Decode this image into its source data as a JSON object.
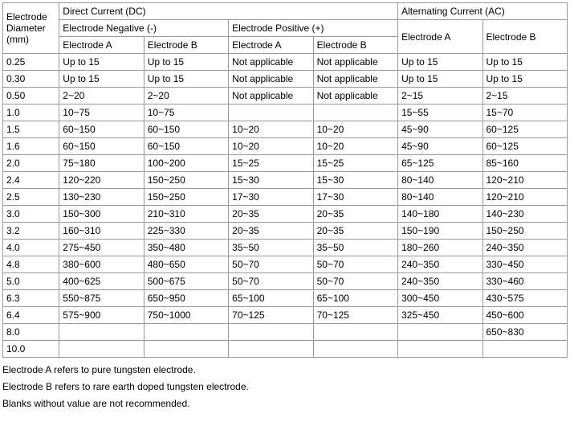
{
  "headers": {
    "diameter": "Electrode Diameter (mm)",
    "dc": "Direct Current (DC)",
    "ac": "Alternating Current (AC)",
    "neg": "Electrode Negative (-)",
    "pos": "Electrode Positive (+)",
    "ea": "Electrode A",
    "eb": "Electrode B"
  },
  "rows": [
    {
      "d": "0.25",
      "c": [
        "Up to 15",
        "Up to 15",
        "Not applicable",
        "Not applicable",
        "Up to 15",
        "Up to 15"
      ]
    },
    {
      "d": "0.30",
      "c": [
        "Up to 15",
        "Up to 15",
        "Not applicable",
        "Not applicable",
        "Up to 15",
        "Up to 15"
      ]
    },
    {
      "d": "0.50",
      "c": [
        "2~20",
        "2~20",
        "Not applicable",
        "Not applicable",
        "2~15",
        "2~15"
      ]
    },
    {
      "d": "1.0",
      "c": [
        "10~75",
        "10~75",
        "",
        "",
        "15~55",
        "15~70"
      ]
    },
    {
      "d": "1.5",
      "c": [
        "60~150",
        "60~150",
        "10~20",
        "10~20",
        "45~90",
        "60~125"
      ]
    },
    {
      "d": "1.6",
      "c": [
        "60~150",
        "60~150",
        "10~20",
        "10~20",
        "45~90",
        "60~125"
      ]
    },
    {
      "d": "2.0",
      "c": [
        "75~180",
        "100~200",
        "15~25",
        "15~25",
        "65~125",
        "85~160"
      ]
    },
    {
      "d": "2.4",
      "c": [
        "120~220",
        "150~250",
        "15~30",
        "15~30",
        "80~140",
        "120~210"
      ]
    },
    {
      "d": "2.5",
      "c": [
        "130~230",
        "150~250",
        "17~30",
        "17~30",
        "80~140",
        "120~210"
      ]
    },
    {
      "d": "3.0",
      "c": [
        "150~300",
        "210~310",
        "20~35",
        "20~35",
        "140~180",
        "140~230"
      ]
    },
    {
      "d": "3.2",
      "c": [
        "160~310",
        "225~330",
        "20~35",
        "20~35",
        "150~190",
        "150~250"
      ]
    },
    {
      "d": "4.0",
      "c": [
        "275~450",
        "350~480",
        "35~50",
        "35~50",
        "180~260",
        "240~350"
      ]
    },
    {
      "d": "4.8",
      "c": [
        "380~600",
        "480~650",
        "50~70",
        "50~70",
        "240~350",
        "330~450"
      ]
    },
    {
      "d": "5.0",
      "c": [
        "400~625",
        "500~675",
        "50~70",
        "50~70",
        "240~350",
        "330~460"
      ]
    },
    {
      "d": "6.3",
      "c": [
        "550~875",
        "650~950",
        "65~100",
        "65~100",
        "300~450",
        "430~575"
      ]
    },
    {
      "d": "6.4",
      "c": [
        "575~900",
        "750~1000",
        "70~125",
        "70~125",
        "325~450",
        "450~600"
      ]
    },
    {
      "d": "8.0",
      "c": [
        "",
        "",
        "",
        "",
        "",
        "650~830"
      ]
    },
    {
      "d": "10.0",
      "c": [
        "",
        "",
        "",
        "",
        "",
        ""
      ]
    }
  ],
  "notes": {
    "n1": "Electrode A refers to pure tungsten electrode.",
    "n2": "Electrode B refers to rare earth doped tungsten electrode.",
    "n3": "Blanks without value are not recommended."
  },
  "style": {
    "border_color": "#999999",
    "background_color": "#ffffff",
    "text_color": "#000000",
    "font_size": 12,
    "col_widths": {
      "diameter": 70,
      "data": 105
    }
  }
}
